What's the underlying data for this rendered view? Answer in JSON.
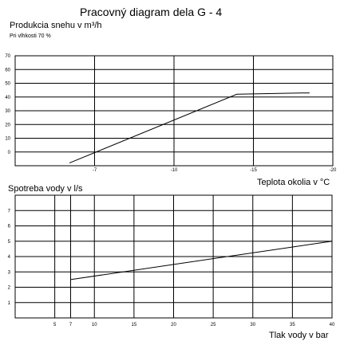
{
  "title": "Pracovný diagram dela G - 4",
  "chart_data": [
    {
      "type": "line",
      "ylabel": "Produkcia snehu v m³/h",
      "note": "Pri vlhkosti 70 %",
      "xlabel": "Teplota okolia v °C",
      "x_ticks": [
        "-7",
        "-10",
        "-15",
        "-20"
      ],
      "y_ticks": [
        "70",
        "60",
        "50",
        "40",
        "30",
        "20",
        "10",
        "0"
      ],
      "grid": true,
      "series": [
        {
          "points": [
            [
              -3.5,
              -8
            ],
            [
              -14.3,
              42
            ],
            [
              -19,
              43
            ]
          ]
        }
      ]
    },
    {
      "type": "line",
      "ylabel": "Spotreba vody v l/s",
      "xlabel": "Tlak vody v bar",
      "x_ticks": [
        "5",
        "7",
        "10",
        "15",
        "20",
        "25",
        "30",
        "35",
        "40"
      ],
      "y_ticks": [
        "7",
        "6",
        "5",
        "4",
        "3",
        "2",
        "1"
      ],
      "grid": true,
      "series": [
        {
          "points": [
            [
              7,
              2.5
            ],
            [
              40,
              5
            ]
          ]
        }
      ]
    }
  ]
}
